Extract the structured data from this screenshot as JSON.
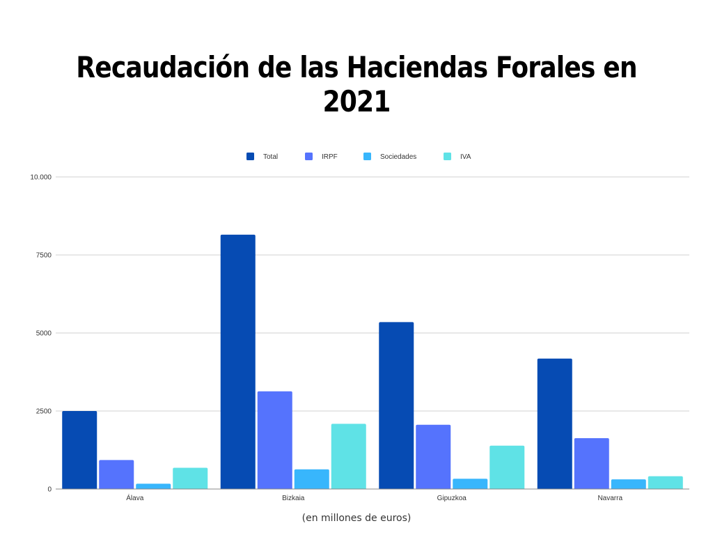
{
  "chart_data": {
    "type": "bar",
    "title": "Recaudación de las Haciendas Forales en 2021",
    "xlabel": "(en millones de euros)",
    "ylabel": "",
    "categories": [
      "Álava",
      "Bizkaia",
      "Gipuzkoa",
      "Navarra"
    ],
    "series": [
      {
        "name": "Total",
        "color": "#064bb3",
        "values": [
          2500,
          8150,
          5350,
          4180
        ]
      },
      {
        "name": "IRPF",
        "color": "#5573fd",
        "values": [
          930,
          3130,
          2060,
          1630
        ]
      },
      {
        "name": "Sociedades",
        "color": "#38b6fc",
        "values": [
          170,
          630,
          330,
          310
        ]
      },
      {
        "name": "IVA",
        "color": "#5fe2e6",
        "values": [
          680,
          2090,
          1390,
          410
        ]
      }
    ],
    "ylim": [
      0,
      10000
    ],
    "yticks": [
      0,
      2500,
      5000,
      7500,
      10000
    ],
    "ytick_labels": [
      "0",
      "2500",
      "5000",
      "7500",
      "10.000"
    ],
    "grid": true,
    "legend_position": "top-center"
  }
}
